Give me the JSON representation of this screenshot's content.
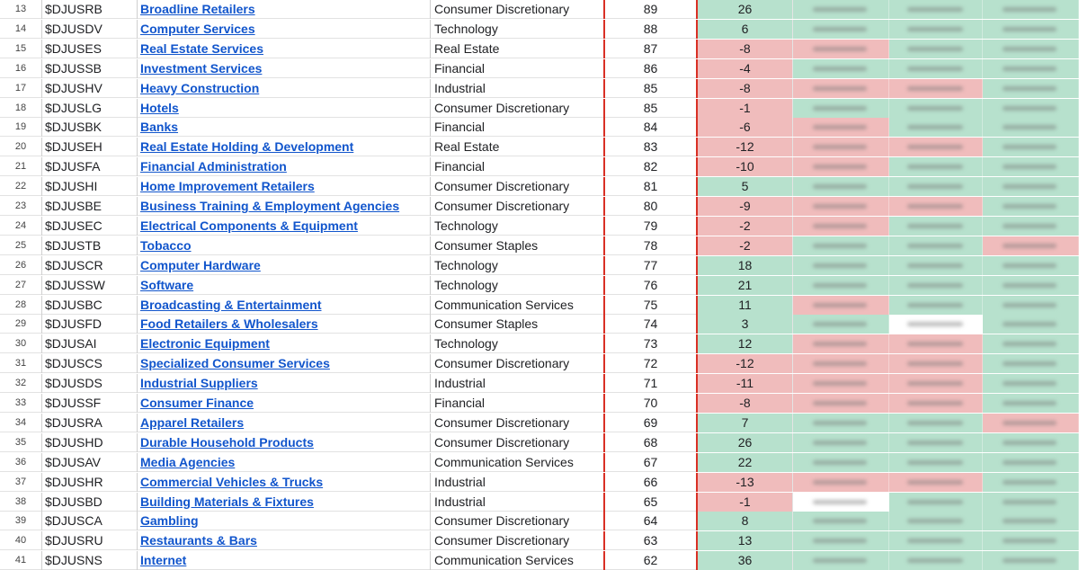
{
  "colors": {
    "positive": "#b7e1cd",
    "negative": "#f0bcbc",
    "neutral": "#ffffff",
    "link": "#1155cc",
    "rank_border": "#d93025"
  },
  "rows": [
    {
      "num": "13",
      "symbol": "$DJUSRB",
      "name": "Broadline Retailers",
      "sector": "Consumer Discretionary",
      "rank": "89",
      "change": "26",
      "change_tone": "pos",
      "blurred_tones": [
        "pos",
        "pos",
        "pos"
      ]
    },
    {
      "num": "14",
      "symbol": "$DJUSDV",
      "name": "Computer Services",
      "sector": "Technology",
      "rank": "88",
      "change": "6",
      "change_tone": "pos",
      "blurred_tones": [
        "pos",
        "pos",
        "pos"
      ]
    },
    {
      "num": "15",
      "symbol": "$DJUSES",
      "name": "Real Estate Services",
      "sector": "Real Estate",
      "rank": "87",
      "change": "-8",
      "change_tone": "neg",
      "blurred_tones": [
        "neg",
        "pos",
        "pos"
      ]
    },
    {
      "num": "16",
      "symbol": "$DJUSSB",
      "name": "Investment Services",
      "sector": "Financial",
      "rank": "86",
      "change": "-4",
      "change_tone": "neg",
      "blurred_tones": [
        "pos",
        "pos",
        "pos"
      ]
    },
    {
      "num": "17",
      "symbol": "$DJUSHV",
      "name": "Heavy Construction",
      "sector": "Industrial",
      "rank": "85",
      "change": "-8",
      "change_tone": "neg",
      "blurred_tones": [
        "neg",
        "neg",
        "pos"
      ]
    },
    {
      "num": "18",
      "symbol": "$DJUSLG",
      "name": "Hotels",
      "sector": "Consumer Discretionary",
      "rank": "85",
      "change": "-1",
      "change_tone": "neg",
      "blurred_tones": [
        "pos",
        "pos",
        "pos"
      ]
    },
    {
      "num": "19",
      "symbol": "$DJUSBK",
      "name": "Banks",
      "sector": "Financial",
      "rank": "84",
      "change": "-6",
      "change_tone": "neg",
      "blurred_tones": [
        "neg",
        "pos",
        "pos"
      ]
    },
    {
      "num": "20",
      "symbol": "$DJUSEH",
      "name": "Real Estate Holding & Development",
      "sector": "Real Estate",
      "rank": "83",
      "change": "-12",
      "change_tone": "neg",
      "blurred_tones": [
        "neg",
        "neg",
        "pos"
      ]
    },
    {
      "num": "21",
      "symbol": "$DJUSFA",
      "name": "Financial Administration",
      "sector": "Financial",
      "rank": "82",
      "change": "-10",
      "change_tone": "neg",
      "blurred_tones": [
        "neg",
        "pos",
        "pos"
      ]
    },
    {
      "num": "22",
      "symbol": "$DJUSHI",
      "name": "Home Improvement Retailers",
      "sector": "Consumer Discretionary",
      "rank": "81",
      "change": "5",
      "change_tone": "pos",
      "blurred_tones": [
        "pos",
        "pos",
        "pos"
      ]
    },
    {
      "num": "23",
      "symbol": "$DJUSBE",
      "name": "Business Training & Employment Agencies",
      "sector": "Consumer Discretionary",
      "rank": "80",
      "change": "-9",
      "change_tone": "neg",
      "blurred_tones": [
        "neg",
        "neg",
        "pos"
      ]
    },
    {
      "num": "24",
      "symbol": "$DJUSEC",
      "name": "Electrical Components & Equipment",
      "sector": "Technology",
      "rank": "79",
      "change": "-2",
      "change_tone": "neg",
      "blurred_tones": [
        "neg",
        "pos",
        "pos"
      ]
    },
    {
      "num": "25",
      "symbol": "$DJUSTB",
      "name": "Tobacco",
      "sector": "Consumer Staples",
      "rank": "78",
      "change": "-2",
      "change_tone": "neg",
      "blurred_tones": [
        "pos",
        "pos",
        "neg"
      ]
    },
    {
      "num": "26",
      "symbol": "$DJUSCR",
      "name": "Computer Hardware",
      "sector": "Technology",
      "rank": "77",
      "change": "18",
      "change_tone": "pos",
      "blurred_tones": [
        "pos",
        "pos",
        "pos"
      ]
    },
    {
      "num": "27",
      "symbol": "$DJUSSW",
      "name": "Software",
      "sector": "Technology",
      "rank": "76",
      "change": "21",
      "change_tone": "pos",
      "blurred_tones": [
        "pos",
        "pos",
        "pos"
      ]
    },
    {
      "num": "28",
      "symbol": "$DJUSBC",
      "name": "Broadcasting & Entertainment",
      "sector": "Communication Services",
      "rank": "75",
      "change": "11",
      "change_tone": "pos",
      "blurred_tones": [
        "neg",
        "pos",
        "pos"
      ]
    },
    {
      "num": "29",
      "symbol": "$DJUSFD",
      "name": "Food Retailers & Wholesalers",
      "sector": "Consumer Staples",
      "rank": "74",
      "change": "3",
      "change_tone": "pos",
      "blurred_tones": [
        "pos",
        "neutral",
        "pos"
      ]
    },
    {
      "num": "30",
      "symbol": "$DJUSAI",
      "name": "Electronic Equipment",
      "sector": "Technology",
      "rank": "73",
      "change": "12",
      "change_tone": "pos",
      "blurred_tones": [
        "neg",
        "neg",
        "pos"
      ]
    },
    {
      "num": "31",
      "symbol": "$DJUSCS",
      "name": "Specialized Consumer Services",
      "sector": "Consumer Discretionary",
      "rank": "72",
      "change": "-12",
      "change_tone": "neg",
      "blurred_tones": [
        "neg",
        "neg",
        "pos"
      ]
    },
    {
      "num": "32",
      "symbol": "$DJUSDS",
      "name": "Industrial Suppliers",
      "sector": "Industrial",
      "rank": "71",
      "change": "-11",
      "change_tone": "neg",
      "blurred_tones": [
        "neg",
        "neg",
        "pos"
      ]
    },
    {
      "num": "33",
      "symbol": "$DJUSSF",
      "name": "Consumer Finance",
      "sector": "Financial",
      "rank": "70",
      "change": "-8",
      "change_tone": "neg",
      "blurred_tones": [
        "neg",
        "neg",
        "pos"
      ]
    },
    {
      "num": "34",
      "symbol": "$DJUSRA",
      "name": "Apparel Retailers",
      "sector": "Consumer Discretionary",
      "rank": "69",
      "change": "7",
      "change_tone": "pos",
      "blurred_tones": [
        "pos",
        "pos",
        "neg"
      ]
    },
    {
      "num": "35",
      "symbol": "$DJUSHD",
      "name": "Durable Household Products",
      "sector": "Consumer Discretionary",
      "rank": "68",
      "change": "26",
      "change_tone": "pos",
      "blurred_tones": [
        "pos",
        "pos",
        "pos"
      ]
    },
    {
      "num": "36",
      "symbol": "$DJUSAV",
      "name": "Media Agencies",
      "sector": "Communication Services",
      "rank": "67",
      "change": "22",
      "change_tone": "pos",
      "blurred_tones": [
        "pos",
        "pos",
        "pos"
      ]
    },
    {
      "num": "37",
      "symbol": "$DJUSHR",
      "name": "Commercial Vehicles & Trucks",
      "sector": "Industrial",
      "rank": "66",
      "change": "-13",
      "change_tone": "neg",
      "blurred_tones": [
        "neg",
        "neg",
        "pos"
      ]
    },
    {
      "num": "38",
      "symbol": "$DJUSBD",
      "name": "Building Materials & Fixtures",
      "sector": "Industrial",
      "rank": "65",
      "change": "-1",
      "change_tone": "neg",
      "blurred_tones": [
        "neutral",
        "pos",
        "pos"
      ]
    },
    {
      "num": "39",
      "symbol": "$DJUSCA",
      "name": "Gambling",
      "sector": "Consumer Discretionary",
      "rank": "64",
      "change": "8",
      "change_tone": "pos",
      "blurred_tones": [
        "pos",
        "pos",
        "pos"
      ]
    },
    {
      "num": "40",
      "symbol": "$DJUSRU",
      "name": "Restaurants & Bars",
      "sector": "Consumer Discretionary",
      "rank": "63",
      "change": "13",
      "change_tone": "pos",
      "blurred_tones": [
        "pos",
        "pos",
        "pos"
      ]
    },
    {
      "num": "41",
      "symbol": "$DJUSNS",
      "name": "Internet",
      "sector": "Communication Services",
      "rank": "62",
      "change": "36",
      "change_tone": "pos",
      "blurred_tones": [
        "pos",
        "pos",
        "pos"
      ]
    }
  ]
}
